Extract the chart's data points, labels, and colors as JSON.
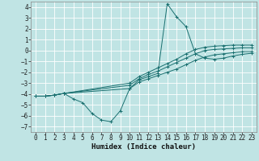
{
  "xlabel": "Humidex (Indice chaleur)",
  "xlim": [
    -0.5,
    23.5
  ],
  "ylim": [
    -7.5,
    4.5
  ],
  "xticks": [
    0,
    1,
    2,
    3,
    4,
    5,
    6,
    7,
    8,
    9,
    10,
    11,
    12,
    13,
    14,
    15,
    16,
    17,
    18,
    19,
    20,
    21,
    22,
    23
  ],
  "yticks": [
    -7,
    -6,
    -5,
    -4,
    -3,
    -2,
    -1,
    0,
    1,
    2,
    3,
    4
  ],
  "bg_color": "#c0e4e4",
  "line_color": "#1a7070",
  "grid_color": "#ffffff",
  "lines": [
    {
      "x": [
        0,
        1,
        2,
        3,
        4,
        5,
        6,
        7,
        8,
        9,
        10,
        11,
        12,
        13,
        14,
        15,
        16,
        17,
        18,
        19,
        20,
        21,
        22,
        23
      ],
      "y": [
        -4.2,
        -4.2,
        -4.1,
        -3.95,
        -4.45,
        -4.8,
        -5.8,
        -6.4,
        -6.55,
        -5.55,
        -3.5,
        -2.7,
        -2.4,
        -2.1,
        4.3,
        3.1,
        2.2,
        -0.3,
        -0.7,
        -0.8,
        -0.7,
        -0.5,
        -0.35,
        -0.25
      ]
    },
    {
      "x": [
        0,
        1,
        2,
        3,
        10,
        11,
        12,
        13,
        14,
        15,
        16,
        17,
        18,
        19,
        20,
        21,
        22,
        23
      ],
      "y": [
        -4.2,
        -4.2,
        -4.1,
        -3.95,
        -3.5,
        -2.9,
        -2.6,
        -2.3,
        -2.0,
        -1.7,
        -1.3,
        -0.9,
        -0.6,
        -0.4,
        -0.3,
        -0.2,
        -0.1,
        -0.1
      ]
    },
    {
      "x": [
        0,
        1,
        2,
        3,
        10,
        11,
        12,
        13,
        14,
        15,
        16,
        17,
        18,
        19,
        20,
        21,
        22,
        23
      ],
      "y": [
        -4.2,
        -4.2,
        -4.1,
        -3.95,
        -3.2,
        -2.6,
        -2.2,
        -1.9,
        -1.5,
        -1.1,
        -0.7,
        -0.3,
        0.0,
        0.1,
        0.15,
        0.2,
        0.25,
        0.25
      ]
    },
    {
      "x": [
        0,
        1,
        2,
        3,
        10,
        11,
        12,
        13,
        14,
        15,
        16,
        17,
        18,
        19,
        20,
        21,
        22,
        23
      ],
      "y": [
        -4.2,
        -4.2,
        -4.1,
        -3.95,
        -3.0,
        -2.4,
        -2.0,
        -1.6,
        -1.2,
        -0.8,
        -0.3,
        0.1,
        0.3,
        0.4,
        0.45,
        0.5,
        0.5,
        0.5
      ]
    }
  ],
  "xlabel_fontsize": 6.5,
  "tick_fontsize": 5.5,
  "lw": 0.7,
  "marker_size": 2.5
}
